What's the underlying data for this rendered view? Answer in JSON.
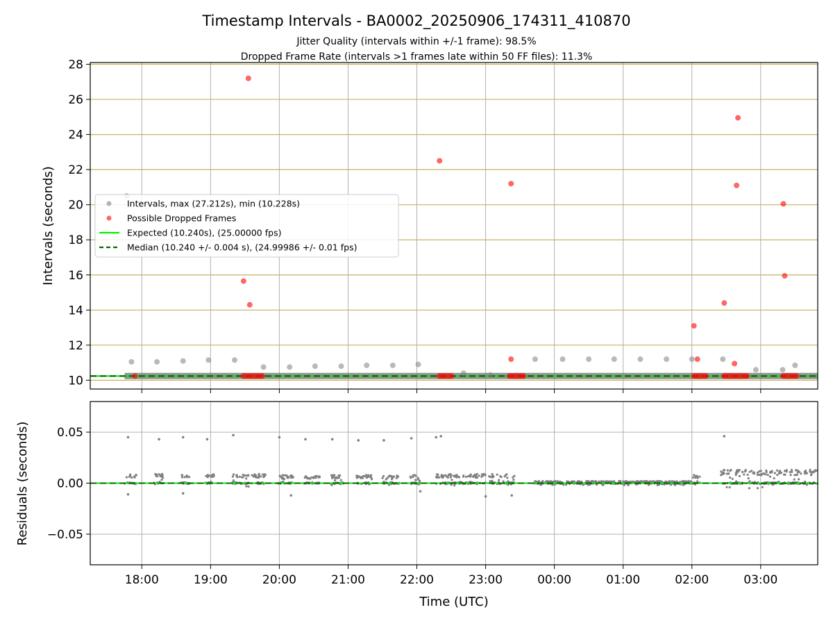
{
  "figure": {
    "title": "Timestamp Intervals - BA0002_20250906_174311_410870",
    "subtitle_1": "Jitter Quality (intervals within +/-1 frame): 98.5%",
    "subtitle_2": "Dropped Frame Rate (intervals >1 frames late within 50 FF files): 11.3%"
  },
  "colors": {
    "intervals": "#808080",
    "dropped": "#ff0000",
    "expected": "#00ee00",
    "median": "#006400",
    "grid": "#b0b0b0",
    "goldgrid": "#c8b061"
  },
  "chart_data": [
    {
      "type": "scatter",
      "x_unit": "hours (UTC, continuing past midnight)",
      "ylabel": "Intervals (seconds)",
      "ylim": [
        9.5,
        28.1
      ],
      "xlim": [
        17.25,
        27.83
      ],
      "yticks": [
        10,
        12,
        14,
        16,
        18,
        20,
        22,
        24,
        26,
        28
      ],
      "grid": true,
      "legend_position": "center-left",
      "legend": {
        "intervals": "Intervals, max (27.212s), min (10.228s)",
        "dropped": "Possible Dropped Frames",
        "expected": "Expected (10.240s), (25.00000 fps)",
        "median": "Median (10.240 +/- 0.004 s), (24.99986 +/- 0.01 fps)"
      },
      "expected_value": 10.24,
      "median_value": 10.24,
      "band_x": [
        17.75,
        27.83
      ],
      "series": [
        {
          "role": "intervals",
          "points": [
            [
              17.78,
              20.5
            ],
            [
              17.85,
              11.05
            ],
            [
              18.22,
              11.05
            ],
            [
              18.6,
              11.1
            ],
            [
              18.97,
              11.15
            ],
            [
              19.35,
              11.15
            ],
            [
              19.77,
              10.75
            ],
            [
              20.15,
              10.75
            ],
            [
              20.52,
              10.8
            ],
            [
              20.9,
              10.8
            ],
            [
              21.27,
              10.85
            ],
            [
              21.65,
              10.85
            ],
            [
              22.02,
              10.9
            ],
            [
              22.68,
              10.4
            ],
            [
              23.07,
              10.3
            ],
            [
              23.72,
              11.2
            ],
            [
              24.12,
              11.2
            ],
            [
              24.5,
              11.2
            ],
            [
              24.87,
              11.2
            ],
            [
              25.25,
              11.2
            ],
            [
              25.63,
              11.2
            ],
            [
              26.0,
              11.2
            ],
            [
              26.45,
              11.2
            ],
            [
              26.93,
              10.6
            ],
            [
              27.32,
              10.6
            ],
            [
              27.5,
              10.85
            ]
          ]
        },
        {
          "role": "dropped",
          "points": [
            [
              17.9,
              10.24
            ],
            [
              19.48,
              15.65
            ],
            [
              19.55,
              27.2
            ],
            [
              19.57,
              14.3
            ],
            [
              22.33,
              22.5
            ],
            [
              23.37,
              21.2
            ],
            [
              23.37,
              11.2
            ],
            [
              26.03,
              13.1
            ],
            [
              26.08,
              11.2
            ],
            [
              26.47,
              14.4
            ],
            [
              26.62,
              10.95
            ],
            [
              26.65,
              21.1
            ],
            [
              26.67,
              24.95
            ],
            [
              27.33,
              20.05
            ],
            [
              27.35,
              15.95
            ]
          ],
          "baseline_ranges": [
            [
              19.48,
              19.75
            ],
            [
              22.33,
              22.5
            ],
            [
              23.35,
              23.55
            ],
            [
              26.03,
              26.2
            ],
            [
              26.47,
              26.8
            ],
            [
              27.33,
              27.52
            ]
          ],
          "baseline_value": 10.24
        }
      ]
    },
    {
      "type": "scatter",
      "xlabel": "Time (UTC)",
      "ylabel": "Residuals (seconds)",
      "ylim": [
        -0.08,
        0.08
      ],
      "xlim": [
        17.25,
        27.83
      ],
      "yticks": [
        -0.05,
        0.0,
        0.05
      ],
      "ytick_labels": [
        "−0.05",
        "0.00",
        "0.05"
      ],
      "xticks": [
        18,
        19,
        20,
        21,
        22,
        23,
        24,
        25,
        26,
        27
      ],
      "xtick_labels": [
        "18:00",
        "19:00",
        "20:00",
        "21:00",
        "22:00",
        "23:00",
        "00:00",
        "01:00",
        "02:00",
        "03:00"
      ],
      "grid": true,
      "zero_line": 0.0,
      "outliers": [
        [
          17.8,
          0.045
        ],
        [
          18.25,
          0.043
        ],
        [
          18.6,
          0.045
        ],
        [
          18.95,
          0.043
        ],
        [
          19.33,
          0.047
        ],
        [
          20.0,
          0.045
        ],
        [
          20.38,
          0.043
        ],
        [
          20.77,
          0.043
        ],
        [
          21.15,
          0.042
        ],
        [
          21.52,
          0.042
        ],
        [
          21.92,
          0.044
        ],
        [
          22.28,
          0.045
        ],
        [
          22.35,
          0.046
        ],
        [
          26.47,
          0.046
        ],
        [
          17.8,
          -0.011
        ],
        [
          20.17,
          -0.012
        ],
        [
          23.0,
          -0.013
        ],
        [
          23.38,
          -0.012
        ],
        [
          18.6,
          -0.01
        ],
        [
          22.05,
          -0.008
        ]
      ],
      "clusters": [
        {
          "x": [
            17.75,
            17.92
          ],
          "ylim": [
            -0.002,
            0.009
          ]
        },
        {
          "x": [
            18.18,
            18.32
          ],
          "ylim": [
            -0.002,
            0.009
          ]
        },
        {
          "x": [
            18.55,
            18.7
          ],
          "ylim": [
            -0.002,
            0.008
          ]
        },
        {
          "x": [
            18.92,
            19.05
          ],
          "ylim": [
            -0.002,
            0.009
          ]
        },
        {
          "x": [
            19.32,
            19.8
          ],
          "ylim": [
            -0.004,
            0.009
          ]
        },
        {
          "x": [
            19.98,
            20.2
          ],
          "ylim": [
            -0.002,
            0.008
          ]
        },
        {
          "x": [
            20.35,
            20.6
          ],
          "ylim": [
            -0.002,
            0.007
          ]
        },
        {
          "x": [
            20.75,
            20.95
          ],
          "ylim": [
            -0.002,
            0.008
          ]
        },
        {
          "x": [
            21.12,
            21.35
          ],
          "ylim": [
            -0.002,
            0.008
          ]
        },
        {
          "x": [
            21.5,
            21.75
          ],
          "ylim": [
            -0.002,
            0.008
          ]
        },
        {
          "x": [
            21.9,
            22.05
          ],
          "ylim": [
            -0.002,
            0.008
          ]
        },
        {
          "x": [
            22.28,
            23.0
          ],
          "ylim": [
            -0.003,
            0.009
          ]
        },
        {
          "x": [
            23.05,
            23.42
          ],
          "ylim": [
            -0.002,
            0.009
          ]
        },
        {
          "x": [
            23.7,
            26.0
          ],
          "ylim": [
            -0.002,
            0.002
          ]
        },
        {
          "x": [
            26.0,
            26.12
          ],
          "ylim": [
            -0.006,
            0.008
          ]
        },
        {
          "x": [
            26.42,
            27.83
          ],
          "ylim": [
            -0.005,
            0.013
          ]
        }
      ]
    }
  ]
}
